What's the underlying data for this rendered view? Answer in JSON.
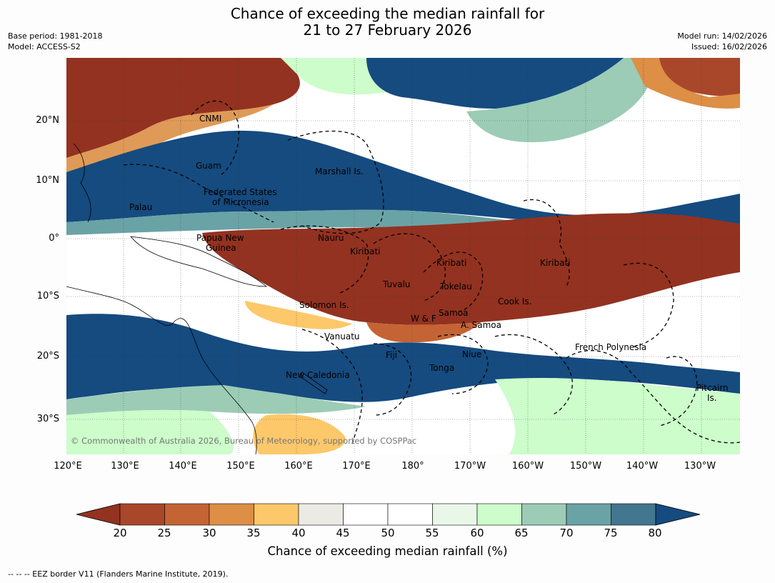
{
  "header": {
    "title_line1": "Chance of exceeding the median rainfall for",
    "title_line2": "21 to 27 February 2026",
    "base_period": "Base period: 1981-2018",
    "model": "Model: ACCESS-S2",
    "model_run": "Model run: 14/02/2026",
    "issued": "Issued: 16/02/2026"
  },
  "map": {
    "copyright": "© Commonwealth of Australia 2026, Bureau of Meteorology, supported by COSPPac",
    "lat_labels": [
      "20°N",
      "10°N",
      "0°",
      "10°S",
      "20°S",
      "30°S"
    ],
    "lon_labels": [
      "120°E",
      "130°E",
      "140°E",
      "150°E",
      "160°E",
      "170°E",
      "180°",
      "170°W",
      "160°W",
      "150°W",
      "140°W",
      "130°W"
    ],
    "regions": [
      "CNMI",
      "Guam",
      "Marshall Is.",
      "Federated States",
      "of Micronesia",
      "Palau",
      "Papua New",
      "Guinea",
      "Nauru",
      "Kiribati",
      "Kiribati",
      "Kiribati",
      "Tuvalu",
      "Tokelau",
      "Cook Is.",
      "Solomon Is.",
      "W & F",
      "Samoa",
      "A. Samoa",
      "Vanuatu",
      "Fiji",
      "Niue",
      "Tonga",
      "New Caledonia",
      "French Polynesia",
      "Pitcairn",
      "Is."
    ]
  },
  "colorbar": {
    "ticks": [
      "20",
      "25",
      "30",
      "35",
      "40",
      "45",
      "50",
      "55",
      "60",
      "65",
      "70",
      "75",
      "80"
    ],
    "colors": [
      "#933220",
      "#a9472b",
      "#c46434",
      "#dc8f45",
      "#fdc86a",
      "#eceae4",
      "#ffffff",
      "#ffffff",
      "#e8f7e8",
      "#ccfdca",
      "#9cccb6",
      "#6aa3a6",
      "#43768f",
      "#154b7f"
    ],
    "label": "Chance of exceeding median rainfall (%)"
  },
  "footnote": "--  --  -- EEZ border V11 (Flanders Marine Institute, 2019)."
}
